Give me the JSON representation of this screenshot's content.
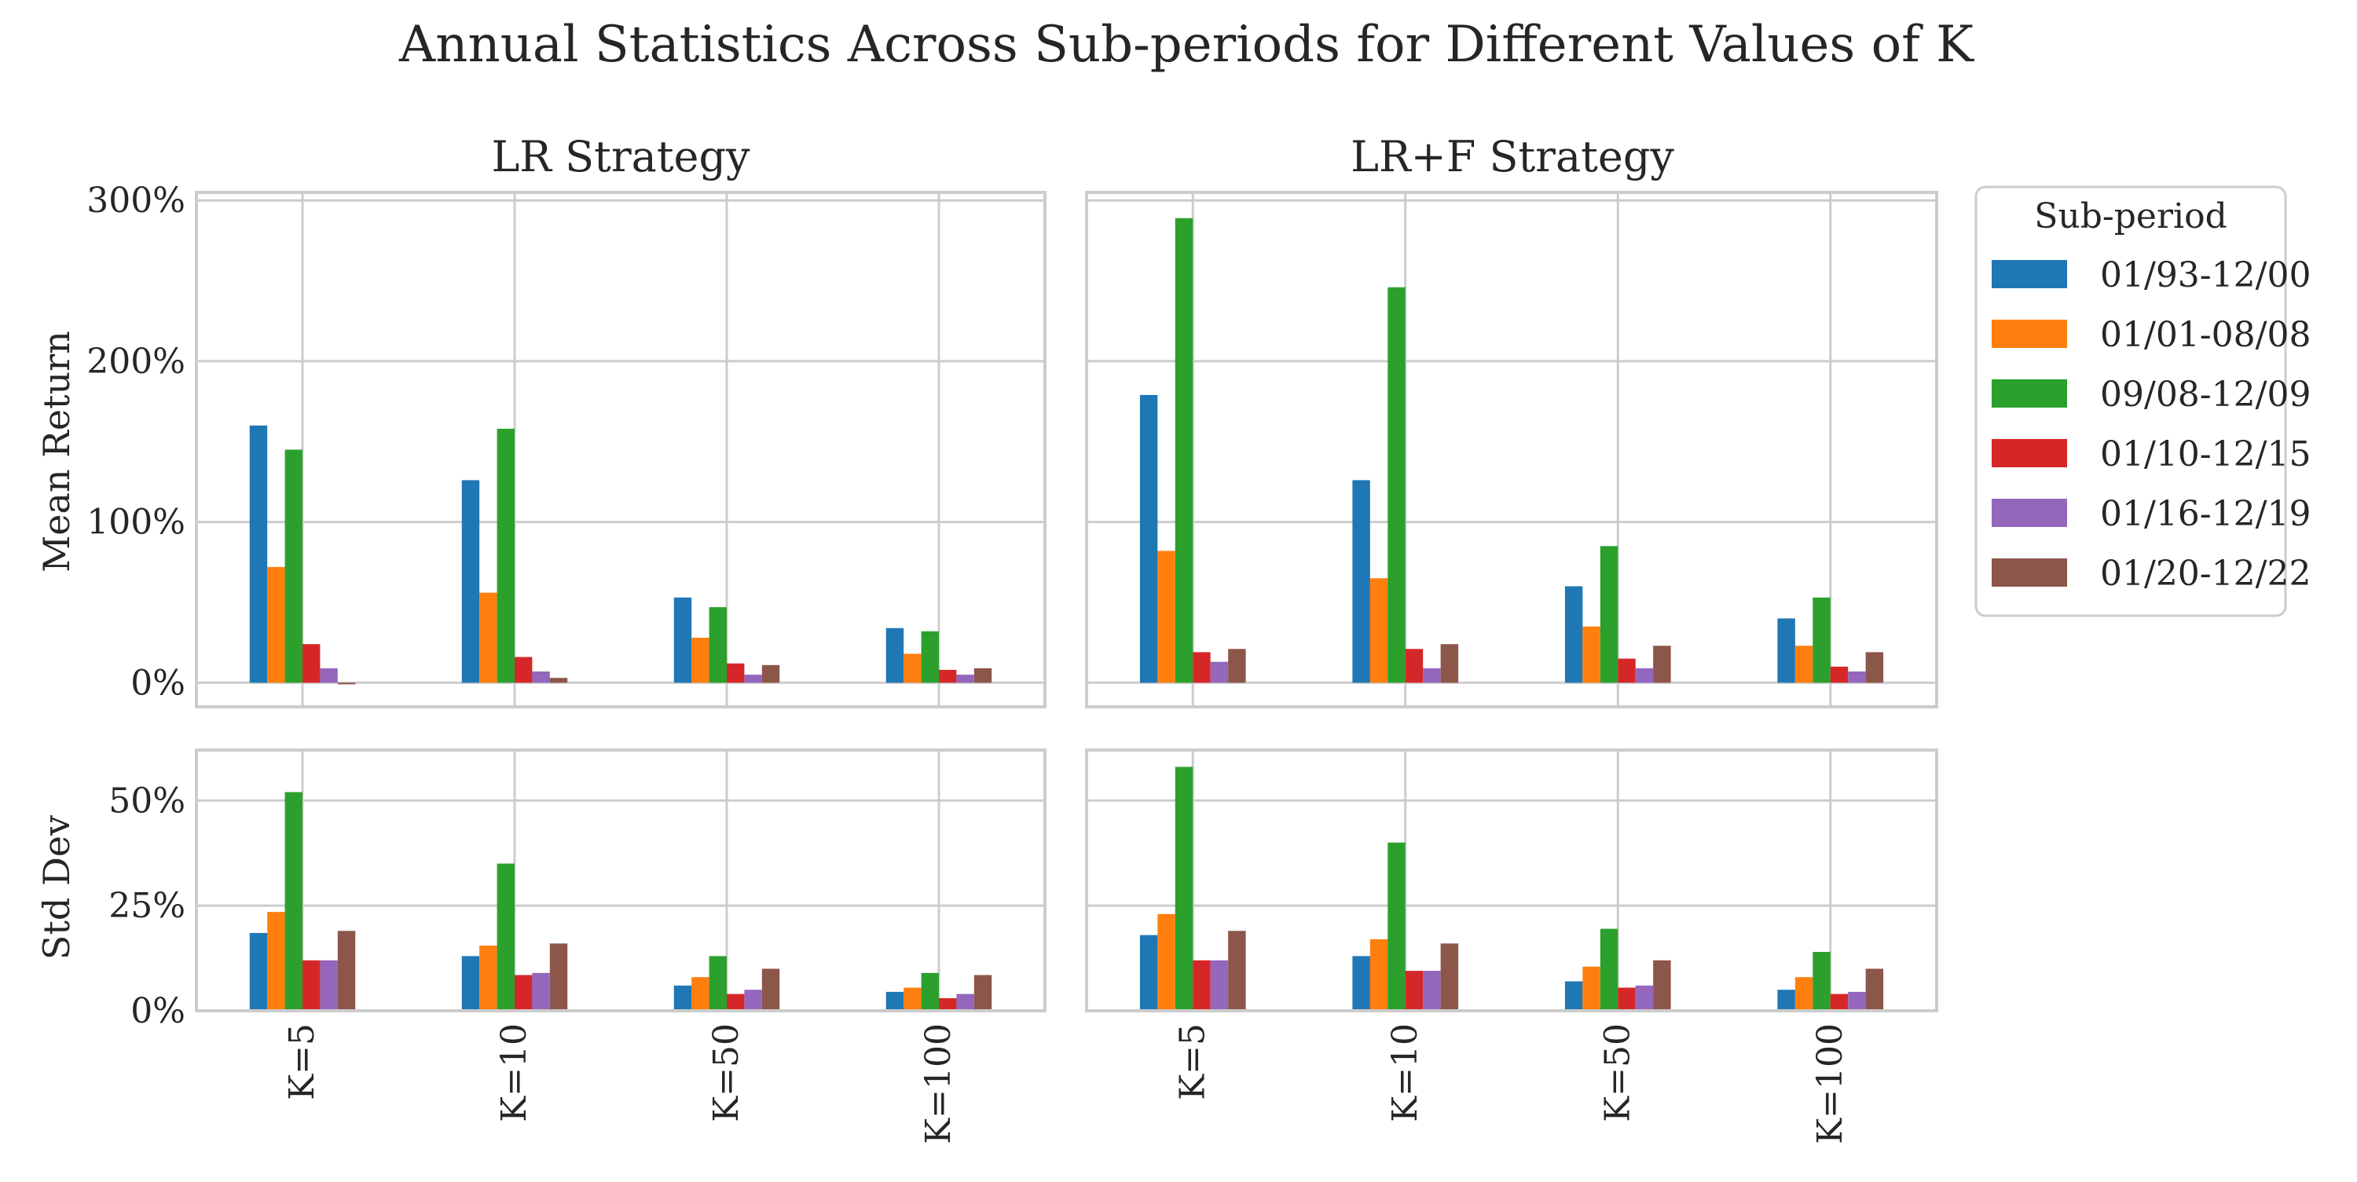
{
  "chart_data": {
    "type": "bar",
    "title": "Annual Statistics Across Sub-periods for Different Values of K",
    "categories": [
      "K=5",
      "K=10",
      "K=50",
      "K=100"
    ],
    "series_names": [
      "01/93-12/00",
      "01/01-08/08",
      "09/08-12/09",
      "01/10-12/15",
      "01/16-12/19",
      "01/20-12/22"
    ],
    "colors": [
      "#1f77b4",
      "#ff7f0e",
      "#2ca02c",
      "#d62728",
      "#9467bd",
      "#8c564b"
    ],
    "legend": {
      "title": "Sub-period",
      "placement": "outside-right"
    },
    "grid": true,
    "panels": {
      "mean_return": {
        "ylabel": "Mean Return",
        "ylim": [
          -15,
          305
        ],
        "yticks": [
          0,
          100,
          200,
          300
        ],
        "ytick_labels": [
          "0%",
          "100%",
          "200%",
          "300%"
        ],
        "lr": {
          "title": "LR Strategy",
          "values": [
            [
              160,
              72,
              145,
              24,
              9,
              -1
            ],
            [
              126,
              56,
              158,
              16,
              7,
              3
            ],
            [
              53,
              28,
              47,
              12,
              5,
              11
            ],
            [
              34,
              18,
              32,
              8,
              5,
              9
            ]
          ]
        },
        "lrf": {
          "title": "LR+F Strategy",
          "values": [
            [
              179,
              82,
              289,
              19,
              13,
              21
            ],
            [
              126,
              65,
              246,
              21,
              9,
              24
            ],
            [
              60,
              35,
              85,
              15,
              9,
              23
            ],
            [
              40,
              23,
              53,
              10,
              7,
              19
            ]
          ]
        }
      },
      "std_dev": {
        "ylabel": "Std Dev",
        "ylim": [
          0,
          62
        ],
        "yticks": [
          0,
          25,
          50
        ],
        "ytick_labels": [
          "0%",
          "25%",
          "50%"
        ],
        "lr": {
          "values": [
            [
              18.5,
              23.5,
              52,
              12,
              12,
              19
            ],
            [
              13,
              15.5,
              35,
              8.5,
              9,
              16
            ],
            [
              6,
              8,
              13,
              4,
              5,
              10
            ],
            [
              4.5,
              5.5,
              9,
              3,
              4,
              8.5
            ]
          ]
        },
        "lrf": {
          "values": [
            [
              18,
              23,
              58,
              12,
              12,
              19
            ],
            [
              13,
              17,
              40,
              9.5,
              9.5,
              16
            ],
            [
              7,
              10.5,
              19.5,
              5.5,
              6,
              12
            ],
            [
              5,
              8,
              14,
              4,
              4.5,
              10
            ]
          ]
        }
      }
    }
  }
}
